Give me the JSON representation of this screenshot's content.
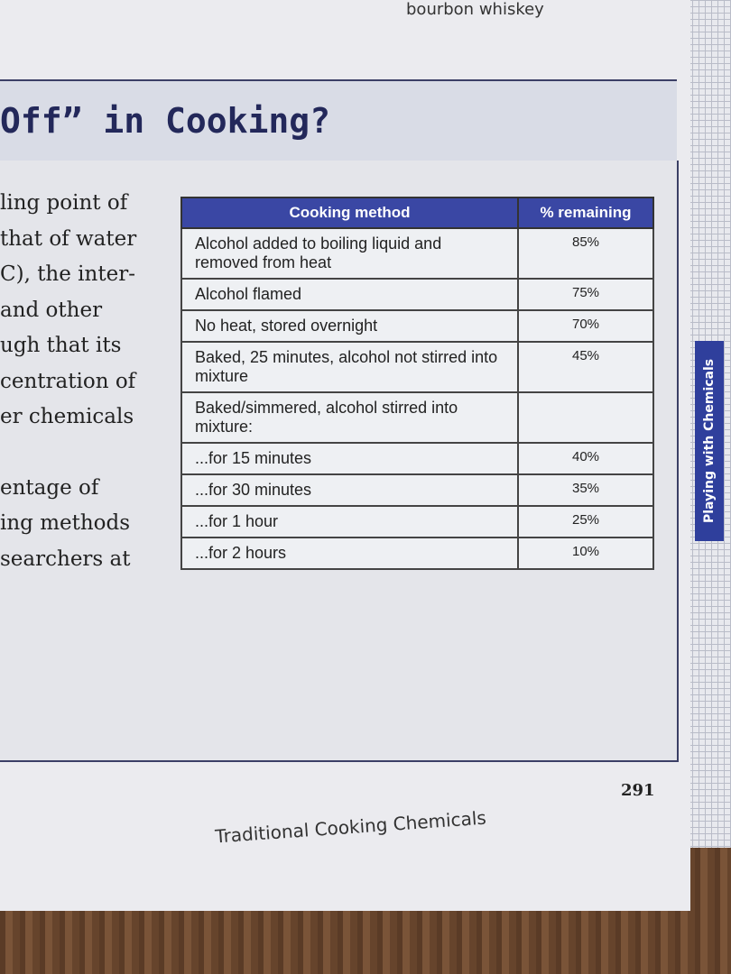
{
  "header": {
    "running_head": "bourbon whiskey"
  },
  "section": {
    "title": "Off” in Cooking?",
    "body_lines": [
      "ling point of",
      "that of water",
      "C), the inter-",
      "and other",
      "ugh that its",
      "centration of",
      "er chemicals",
      "entage of",
      "ing methods",
      "searchers at"
    ]
  },
  "table": {
    "headers": [
      "Cooking method",
      "% remaining"
    ],
    "rows": [
      [
        "Alcohol added to boiling liquid and removed from heat",
        "85%"
      ],
      [
        "Alcohol flamed",
        "75%"
      ],
      [
        "No heat, stored overnight",
        "70%"
      ],
      [
        "Baked, 25 minutes, alcohol not stirred into mixture",
        "45%"
      ],
      [
        "Baked/simmered, alcohol stirred into mixture:",
        null
      ],
      [
        "...for 15 minutes",
        "40%"
      ],
      [
        "...for 30 minutes",
        "35%"
      ],
      [
        "...for 1 hour",
        "25%"
      ],
      [
        "...for 2 hours",
        "10%"
      ]
    ]
  },
  "side_tab": "Playing with Chemicals",
  "footer": {
    "page_number": "291",
    "chapter": "Traditional Cooking Chemicals"
  }
}
